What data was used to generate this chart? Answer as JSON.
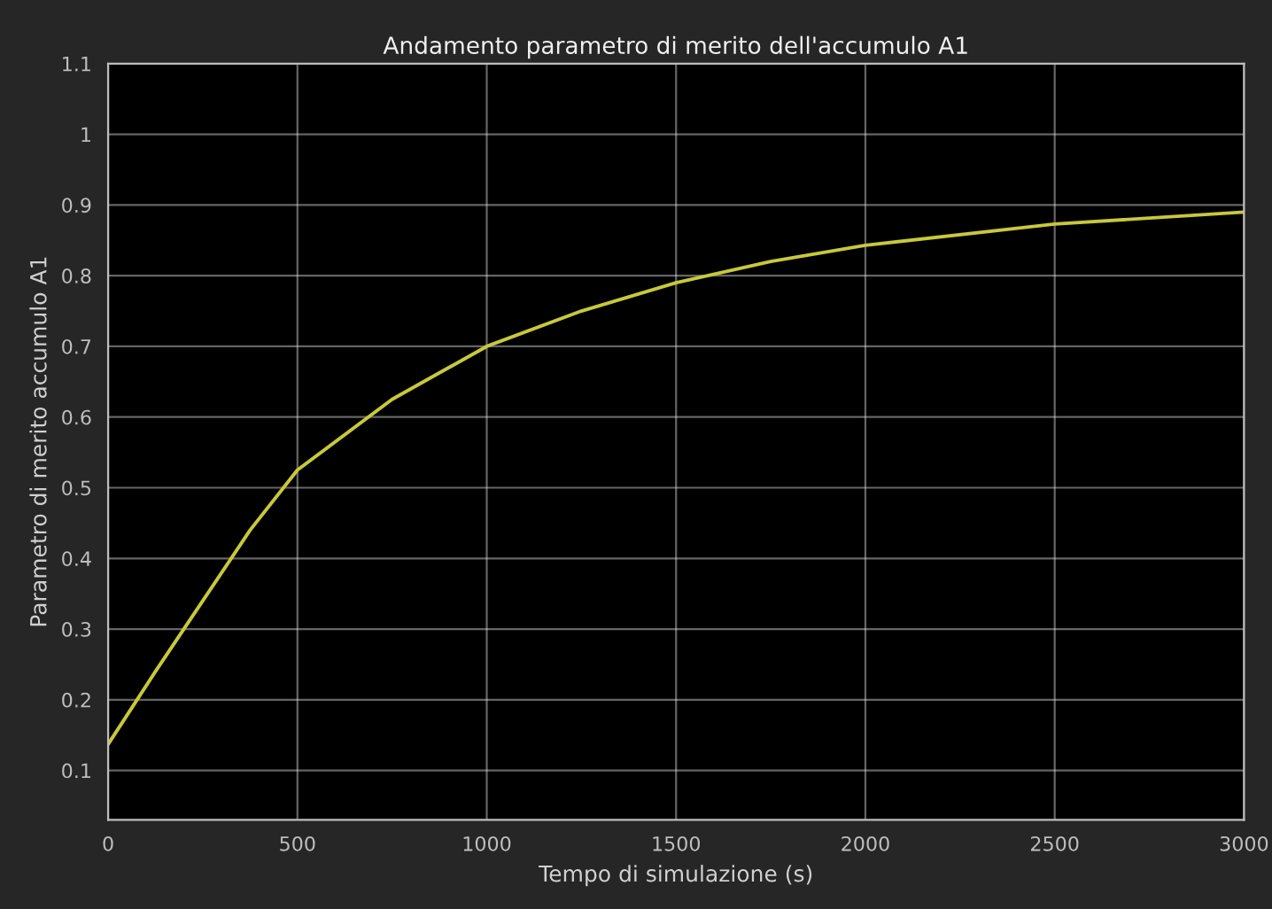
{
  "chart_data": {
    "type": "line",
    "title": "Andamento parametro di merito dell'accumulo A1",
    "xlabel": "Tempo di simulazione (s)",
    "ylabel": "Parametro di merito accumulo A1",
    "x": [
      0,
      125,
      250,
      375,
      500,
      750,
      1000,
      1250,
      1500,
      1750,
      2000,
      2500,
      3000
    ],
    "series": [
      {
        "color": "#c8c83c",
        "values": [
          0.137,
          0.24,
          0.34,
          0.44,
          0.525,
          0.625,
          0.7,
          0.75,
          0.79,
          0.82,
          0.843,
          0.873,
          0.89
        ]
      }
    ],
    "xlim": [
      0,
      3000
    ],
    "xticks": [
      0,
      500,
      1000,
      1500,
      2000,
      2500,
      3000
    ],
    "ylim": [
      0.03,
      1.1
    ],
    "yticks": [
      0.1,
      0.2,
      0.3,
      0.4,
      0.5,
      0.6,
      0.7,
      0.8,
      0.9,
      1,
      1.1
    ],
    "grid": true,
    "marker": "none",
    "line_style": "solid"
  }
}
